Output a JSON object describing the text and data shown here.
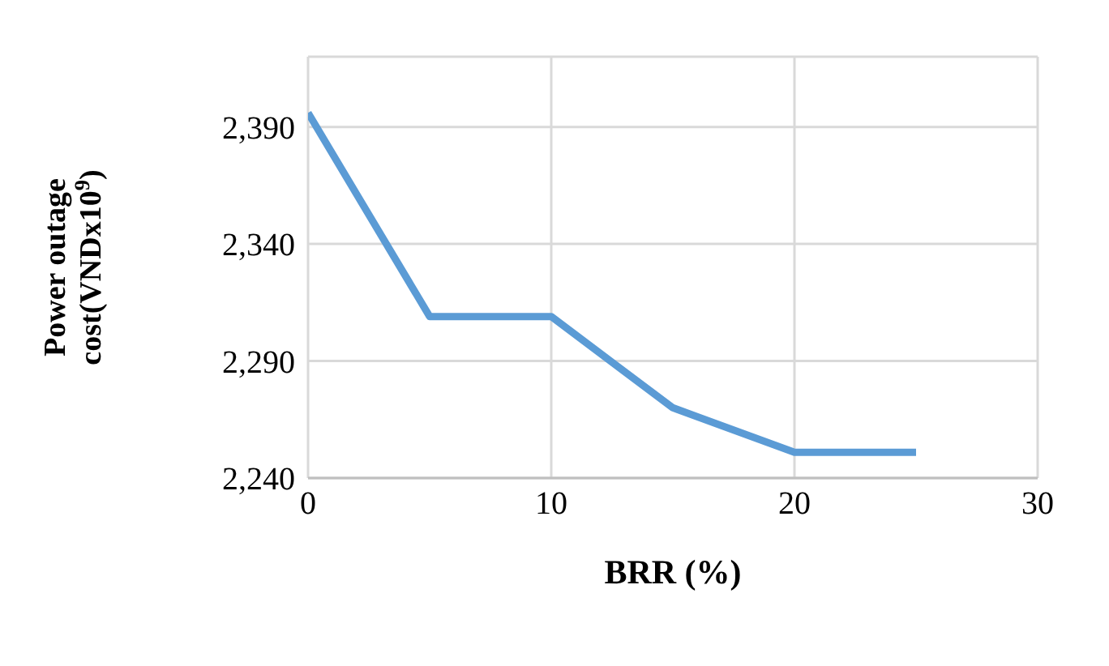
{
  "chart_data": {
    "type": "line",
    "xlabel": "BRR (%)",
    "ylabel": "Power outage cost(VNDx10$^{9}$)",
    "x": [
      0,
      5,
      10,
      15,
      20,
      25
    ],
    "series": [
      {
        "color": "#5b9bd5",
        "values": [
          2396,
          2309,
          2309,
          2270,
          2251,
          2251
        ]
      }
    ],
    "xlim": [
      0,
      30
    ],
    "xticks": [
      0,
      10,
      20,
      30
    ],
    "ylim": [
      2240,
      2420
    ],
    "yticks": [
      {
        "value": 2240,
        "label": "2,240"
      },
      {
        "value": 2290,
        "label": "2,290"
      },
      {
        "value": 2340,
        "label": "2,340"
      },
      {
        "value": 2390,
        "label": "2,390"
      }
    ],
    "grid": true,
    "marker": "none",
    "line_style": "solid"
  }
}
